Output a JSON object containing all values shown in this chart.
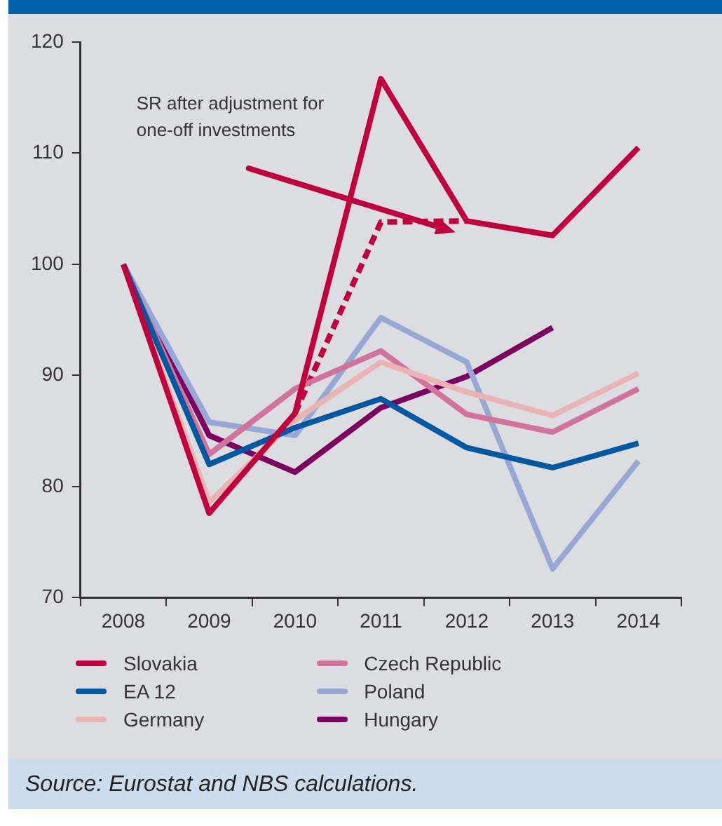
{
  "chart_data": {
    "type": "line",
    "categories": [
      "2008",
      "2009",
      "2010",
      "2011",
      "2012",
      "2013",
      "2014"
    ],
    "series": [
      {
        "name": "Slovakia",
        "color": "#c0003c",
        "values": [
          100,
          77.6,
          86.6,
          116.7,
          103.9,
          102.6,
          110.5
        ]
      },
      {
        "name": "EA 12",
        "color": "#0058a0",
        "values": [
          100,
          82,
          85.3,
          87.9,
          83.5,
          81.7,
          83.9
        ]
      },
      {
        "name": "Germany",
        "color": "#eab4b4",
        "values": [
          100,
          78.6,
          86,
          91.2,
          88.5,
          86.4,
          90.2
        ]
      },
      {
        "name": "Czech Republic",
        "color": "#d1739b",
        "values": [
          100,
          82.9,
          88.8,
          92.2,
          86.5,
          84.9,
          88.8
        ]
      },
      {
        "name": "Poland",
        "color": "#97a8d6",
        "values": [
          100,
          85.8,
          84.6,
          95.2,
          91.2,
          72.6,
          82.3
        ]
      },
      {
        "name": "Hungary",
        "color": "#7b0060",
        "values": [
          100,
          84.6,
          81.3,
          87.1,
          89.9,
          94.3,
          null
        ]
      },
      {
        "color": "#c0003c",
        "line_style": "dashed",
        "values": [
          null,
          null,
          86.6,
          103.8,
          103.9,
          null,
          null
        ]
      }
    ],
    "ylim": [
      70,
      120
    ],
    "yticks": [
      70,
      80,
      90,
      100,
      110,
      120
    ],
    "grid": false,
    "marker": "none",
    "legend": "bottom",
    "line_style": "solid",
    "annotations": [
      "SR after adjustment for one-off investments",
      "Source: Eurostat and NBS calculations."
    ]
  }
}
